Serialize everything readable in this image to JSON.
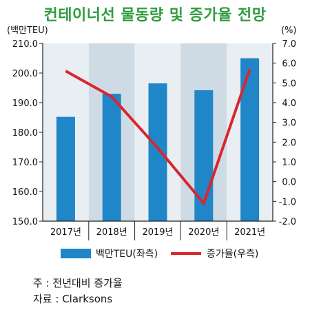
{
  "chart_data": {
    "type": "bar+line",
    "title": "컨테이너선 물동량 및 증가율 전망",
    "ylabel_left": "(백만TEU)",
    "ylabel_right": "(%)",
    "categories": [
      "2017년",
      "2018년",
      "2019년",
      "2020년",
      "2021년"
    ],
    "ylim_left": [
      150,
      210
    ],
    "ylim_right": [
      -2,
      7
    ],
    "yticks_left": [
      "150.0",
      "160.0",
      "170.0",
      "180.0",
      "190.0",
      "200.0",
      "210.0"
    ],
    "yticks_right": [
      "-2.0",
      "-1.0",
      "0.0",
      "1.0",
      "2.0",
      "3.0",
      "4.0",
      "5.0",
      "6.0",
      "7.0"
    ],
    "series": [
      {
        "name": "백만TEU(좌측)",
        "kind": "bar",
        "axis": "left",
        "color": "#1f86c8",
        "values": [
          185.2,
          193.0,
          196.5,
          194.2,
          205.0
        ]
      },
      {
        "name": "증가율(우측)",
        "kind": "line",
        "axis": "right",
        "color": "#d9262e",
        "values": [
          5.6,
          4.3,
          1.7,
          -1.1,
          5.7
        ]
      }
    ],
    "legend_position": "bottom",
    "grid": false,
    "band_colors": [
      "#e9eef2",
      "#cfdbe4"
    ]
  },
  "notes": {
    "line1": "주 : 전년대비 증가율",
    "line2": "자료 : Clarksons"
  }
}
